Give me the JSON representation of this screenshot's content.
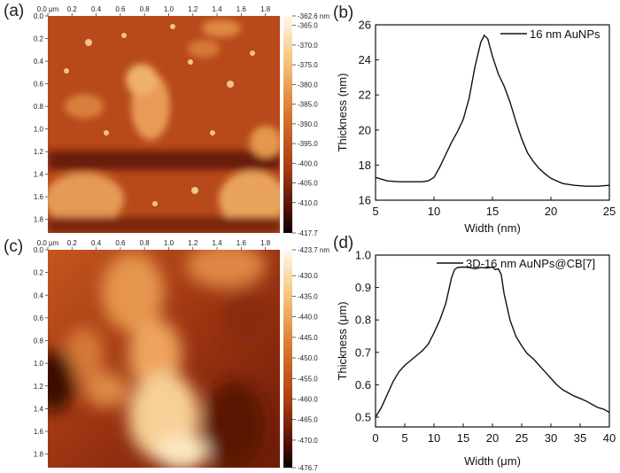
{
  "panel_labels": {
    "a": "(a)",
    "b": "(b)",
    "c": "(c)",
    "d": "(d)"
  },
  "chart_data": [
    {
      "id": "a",
      "type": "heatmap",
      "title": "",
      "x_ticks": [
        "0.0 μm",
        "0.2",
        "0.4",
        "0.6",
        "0.8",
        "1.0",
        "1.2",
        "1.4",
        "1.6",
        "1.8"
      ],
      "y_ticks": [
        "0.0",
        "0.2",
        "0.4",
        "0.6",
        "0.8",
        "1.0",
        "1.2",
        "1.4",
        "1.6",
        "1.8"
      ],
      "x_range": [
        0,
        1.92
      ],
      "y_range": [
        0,
        1.92
      ],
      "colorbar_ticks": [
        "-362.6 nm",
        "-365.0",
        "-370.0",
        "-375.0",
        "-380.0",
        "-385.0",
        "-390.0",
        "-395.0",
        "-400.0",
        "-405.0",
        "-410.0",
        "-417.7"
      ],
      "colorbar_range": [
        -417.7,
        -362.6
      ]
    },
    {
      "id": "b",
      "type": "line",
      "xlabel": "Width (nm)",
      "ylabel": "Thickness (nm)",
      "xlim": [
        5,
        25
      ],
      "ylim": [
        16,
        26
      ],
      "x_ticks": [
        "5",
        "10",
        "15",
        "20",
        "25"
      ],
      "y_ticks": [
        "16",
        "18",
        "20",
        "22",
        "24",
        "26"
      ],
      "legend_position": "top-right",
      "series": [
        {
          "name": "16 nm AuNPs",
          "x": [
            5,
            6,
            7,
            8,
            9,
            9.5,
            10,
            10.5,
            11,
            11.5,
            12,
            12.5,
            13,
            13.5,
            14,
            14.3,
            14.6,
            15,
            15.5,
            16,
            16.5,
            17,
            17.5,
            18,
            18.5,
            19,
            19.5,
            20,
            21,
            22,
            23,
            24,
            25
          ],
          "y": [
            17.3,
            17.1,
            17.05,
            17.05,
            17.05,
            17.1,
            17.3,
            17.9,
            18.6,
            19.3,
            19.9,
            20.6,
            21.8,
            23.6,
            25.0,
            25.4,
            25.2,
            24.2,
            23.2,
            22.5,
            21.6,
            20.5,
            19.5,
            18.7,
            18.2,
            17.8,
            17.5,
            17.25,
            16.95,
            16.85,
            16.8,
            16.8,
            16.85
          ]
        }
      ]
    },
    {
      "id": "c",
      "type": "heatmap",
      "title": "",
      "x_ticks": [
        "0.0 μm",
        "0.2",
        "0.4",
        "0.6",
        "0.8",
        "1.0",
        "1.2",
        "1.4",
        "1.6",
        "1.8"
      ],
      "y_ticks": [
        "0.0",
        "0.2",
        "0.4",
        "0.6",
        "0.8",
        "1.0",
        "1.2",
        "1.4",
        "1.6",
        "1.8"
      ],
      "x_range": [
        0,
        1.92
      ],
      "y_range": [
        0,
        1.92
      ],
      "colorbar_ticks": [
        "-423.7 nm",
        "-430.0",
        "-435.0",
        "-440.0",
        "-445.0",
        "-450.0",
        "-455.0",
        "-460.0",
        "-465.0",
        "-470.0",
        "-476.7"
      ],
      "colorbar_range": [
        -476.7,
        -423.7
      ]
    },
    {
      "id": "d",
      "type": "line",
      "xlabel": "Width (μm)",
      "ylabel": "Thickness (μm)",
      "xlim": [
        0,
        40
      ],
      "ylim": [
        0.47,
        1.0
      ],
      "x_ticks": [
        "0",
        "5",
        "10",
        "15",
        "20",
        "25",
        "30",
        "35",
        "40"
      ],
      "y_ticks": [
        "0.5",
        "0.6",
        "0.7",
        "0.8",
        "0.9",
        "1.0"
      ],
      "legend_position": "top",
      "series": [
        {
          "name": "3D-16 nm AuNPs@CB[7]",
          "x": [
            0,
            1,
            2,
            3,
            4,
            5,
            6,
            7,
            8,
            9,
            10,
            11,
            12,
            12.5,
            13,
            13.5,
            14,
            15,
            16,
            17,
            18,
            19,
            20,
            20.5,
            21,
            21.5,
            22,
            23,
            24,
            25,
            26,
            27,
            28,
            29,
            30,
            31,
            32,
            33,
            34,
            35,
            36,
            37,
            38,
            39,
            40
          ],
          "y": [
            0.5,
            0.53,
            0.57,
            0.61,
            0.64,
            0.66,
            0.675,
            0.69,
            0.705,
            0.725,
            0.76,
            0.8,
            0.85,
            0.89,
            0.93,
            0.955,
            0.962,
            0.963,
            0.962,
            0.958,
            0.962,
            0.96,
            0.963,
            0.955,
            0.958,
            0.94,
            0.88,
            0.8,
            0.75,
            0.72,
            0.695,
            0.68,
            0.66,
            0.64,
            0.62,
            0.6,
            0.585,
            0.575,
            0.565,
            0.558,
            0.55,
            0.54,
            0.53,
            0.525,
            0.515
          ]
        }
      ]
    }
  ]
}
